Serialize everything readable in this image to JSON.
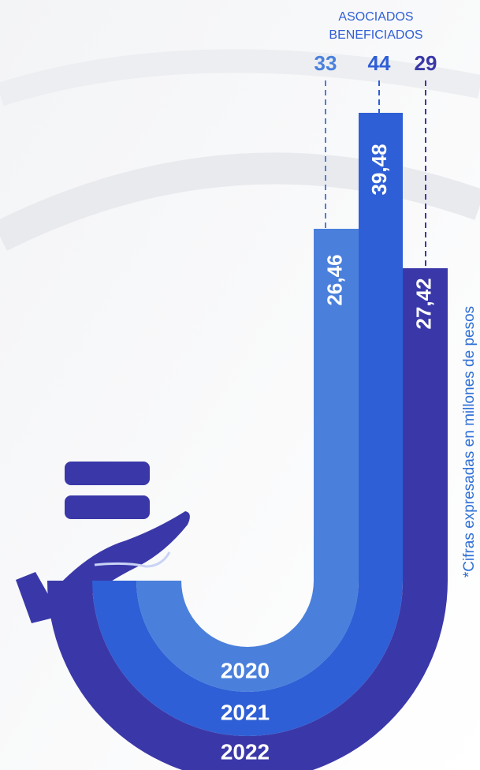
{
  "header": {
    "line1": "ASOCIADOS",
    "line2": "BENEFICIADOS"
  },
  "bars": [
    {
      "year": "2020",
      "associates": "33",
      "amount": "26,46",
      "color": "#4a80dc"
    },
    {
      "year": "2021",
      "associates": "44",
      "amount": "39,48",
      "color": "#2f5fd6"
    },
    {
      "year": "2022",
      "associates": "29",
      "amount": "27,42",
      "color": "#3a38a8"
    }
  ],
  "note": "*Cifras expresadas en millones de pesos"
}
